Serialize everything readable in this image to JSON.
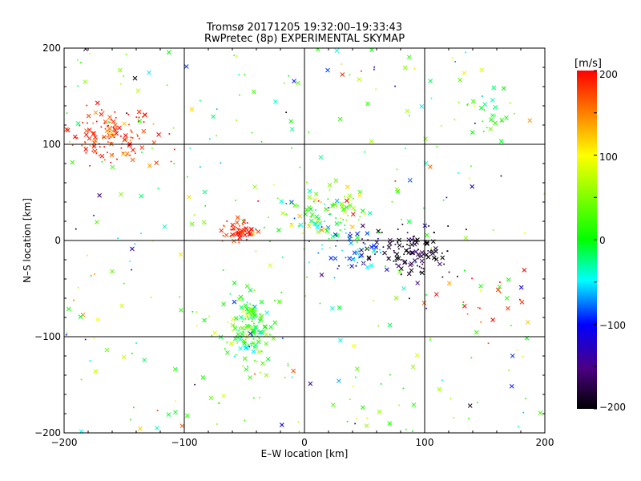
{
  "chart_data": {
    "type": "scatter",
    "title": "Tromsø 20171205 19:32:00–19:33:43",
    "subtitle": "RwPretec (8p) EXPERIMENTAL SKYMAP",
    "xlabel": "E–W location [km]",
    "ylabel": "N–S location [km]",
    "xlim": [
      -200,
      200
    ],
    "ylim": [
      -200,
      200
    ],
    "xticks": [
      "−200",
      "−100",
      "0",
      "100",
      "200"
    ],
    "yticks": [
      "−200",
      "−100",
      "0",
      "100",
      "200"
    ],
    "grid": true,
    "gridlines": [
      -100,
      0,
      100
    ],
    "colorbar": {
      "label": "[m/s]",
      "range": [
        -200,
        200
      ],
      "ticks": [
        "200",
        "100",
        "0",
        "−100",
        "−200"
      ],
      "colormap": [
        "#ff0000",
        "#ffff00",
        "#00ff00",
        "#00ffff",
        "#0000ff",
        "#4b0082",
        "#000000"
      ]
    },
    "clusters": [
      {
        "region": "north-west",
        "x": -160,
        "y": 110,
        "velocity": 180
      },
      {
        "region": "center",
        "x": 15,
        "y": 25,
        "velocity": 20
      },
      {
        "region": "center-west",
        "x": -55,
        "y": 10,
        "velocity": 190
      },
      {
        "region": "south-center",
        "x": -45,
        "y": -90,
        "velocity": 10
      },
      {
        "region": "east",
        "x": 90,
        "y": -15,
        "velocity": -190
      },
      {
        "region": "east-blue",
        "x": 45,
        "y": -10,
        "velocity": -80
      },
      {
        "region": "south-east",
        "x": 150,
        "y": -60,
        "velocity": 180
      },
      {
        "region": "north-east",
        "x": 150,
        "y": 130,
        "velocity": 10
      }
    ]
  }
}
